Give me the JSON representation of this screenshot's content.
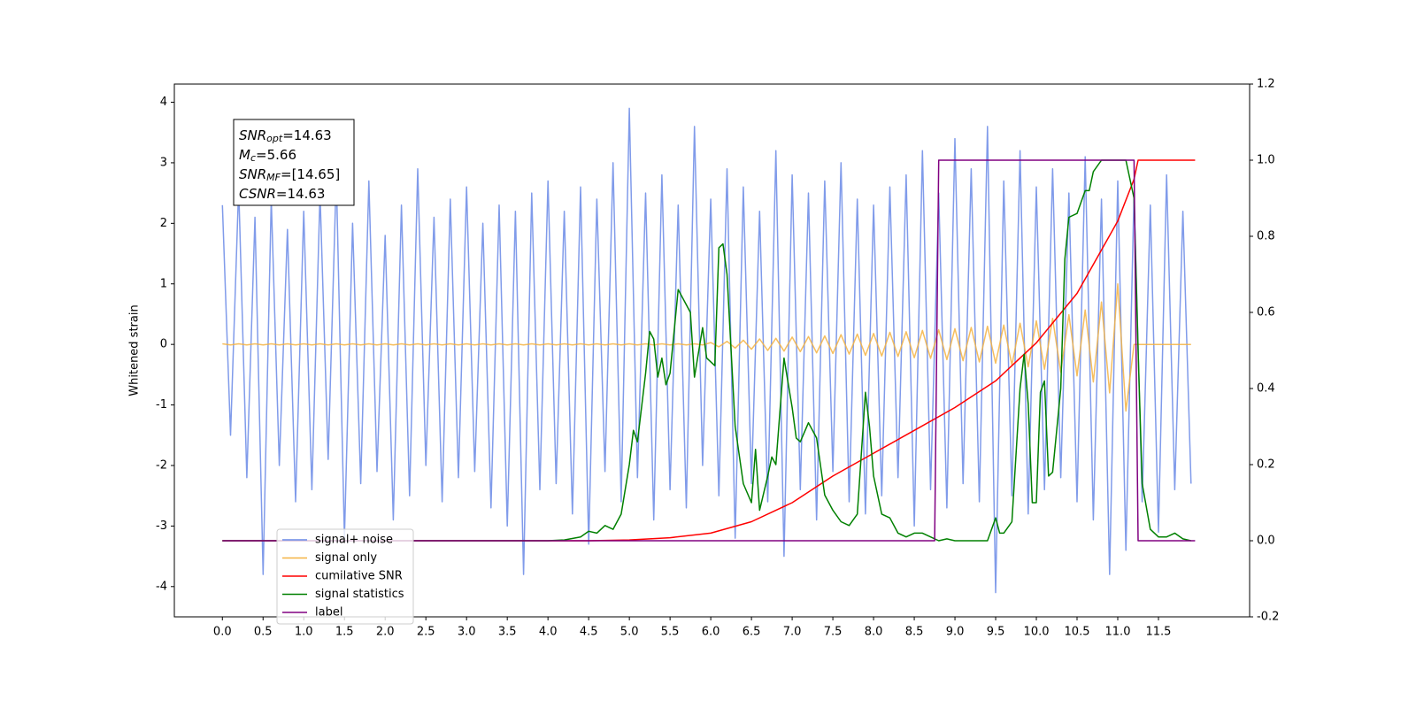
{
  "chart_data": {
    "type": "line",
    "ylabel": "Whitened strain",
    "xlim": [
      -0.59,
      12.62
    ],
    "ylim": [
      -4.5,
      4.3
    ],
    "y2lim": [
      -0.2,
      1.2
    ],
    "xticks": [
      {
        "value": 0,
        "label": "0.0"
      },
      0.5,
      {
        "value": 1,
        "label": "1.0"
      },
      1.5,
      {
        "value": 2,
        "label": "2.0"
      },
      2.5,
      {
        "value": 3,
        "label": "3.0"
      },
      3.5,
      {
        "value": 4,
        "label": "4.0"
      },
      4.5,
      {
        "value": 5,
        "label": "5.0"
      },
      5.5,
      {
        "value": 6,
        "label": "6.0"
      },
      6.5,
      {
        "value": 7,
        "label": "7.0"
      },
      7.5,
      {
        "value": 8,
        "label": "8.0"
      },
      8.5,
      {
        "value": 9,
        "label": "9.0"
      },
      9.5,
      {
        "value": 10,
        "label": "10.0"
      },
      10.5,
      {
        "value": 11,
        "label": "11.0"
      },
      11.5
    ],
    "yticks": [
      -4,
      -3,
      -2,
      -1,
      0,
      1,
      2,
      3,
      4
    ],
    "y2ticks": [
      -0.2,
      {
        "value": 0,
        "label": "0.0"
      },
      0.2,
      0.4,
      0.6,
      0.8,
      {
        "value": 1,
        "label": "1.0"
      },
      1.2
    ],
    "legend": "lower left",
    "annotation": [
      {
        "main": "SNR",
        "sub": "opt",
        "rest": "=14.63"
      },
      {
        "main": "M",
        "sub": "c",
        "rest": "=5.66"
      },
      {
        "main": "SNR",
        "sub": "MF",
        "rest": "=[14.65]"
      },
      {
        "main": "CSNR",
        "rest": "=14.63"
      }
    ],
    "x": [
      0.0,
      0.1,
      0.2,
      0.3,
      0.4,
      0.5,
      0.6,
      0.7,
      0.8,
      0.9,
      1.0,
      1.1,
      1.2,
      1.3,
      1.4,
      1.5,
      1.6,
      1.7,
      1.8,
      1.9,
      2.0,
      2.1,
      2.2,
      2.3,
      2.4,
      2.5,
      2.6,
      2.7,
      2.8,
      2.9,
      3.0,
      3.1,
      3.2,
      3.3,
      3.4,
      3.5,
      3.6,
      3.7,
      3.8,
      3.9,
      4.0,
      4.1,
      4.2,
      4.3,
      4.4,
      4.5,
      4.6,
      4.7,
      4.8,
      4.9,
      5.0,
      5.1,
      5.2,
      5.3,
      5.4,
      5.5,
      5.6,
      5.7,
      5.8,
      5.9,
      6.0,
      6.1,
      6.2,
      6.3,
      6.4,
      6.5,
      6.6,
      6.7,
      6.8,
      6.9,
      7.0,
      7.1,
      7.2,
      7.3,
      7.4,
      7.5,
      7.6,
      7.7,
      7.8,
      7.9,
      8.0,
      8.1,
      8.2,
      8.3,
      8.4,
      8.5,
      8.6,
      8.7,
      8.8,
      8.9,
      9.0,
      9.1,
      9.2,
      9.3,
      9.4,
      9.5,
      9.6,
      9.7,
      9.8,
      9.9,
      10.0,
      10.1,
      10.2,
      10.3,
      10.4,
      10.5,
      10.6,
      10.7,
      10.8,
      10.9,
      11.0,
      11.1,
      11.2,
      11.3,
      11.4,
      11.5,
      11.6,
      11.7,
      11.8,
      11.9
    ],
    "series": [
      {
        "name": "signal+ noise",
        "color": "#6a8ae6",
        "values": [
          2.3,
          -1.5,
          2.6,
          -2.2,
          2.1,
          -3.8,
          2.4,
          -2.0,
          1.9,
          -2.6,
          2.2,
          -2.4,
          2.5,
          -1.9,
          2.8,
          -3.2,
          2.0,
          -2.3,
          2.7,
          -2.1,
          1.8,
          -2.9,
          2.3,
          -2.5,
          2.9,
          -2.0,
          2.1,
          -2.6,
          2.4,
          -2.2,
          2.6,
          -2.1,
          2.0,
          -2.7,
          2.3,
          -3.0,
          2.2,
          -3.8,
          2.5,
          -2.4,
          2.7,
          -2.3,
          2.2,
          -2.8,
          2.6,
          -3.3,
          2.4,
          -2.1,
          3.0,
          -2.6,
          3.9,
          -2.2,
          2.5,
          -2.9,
          2.8,
          -2.4,
          2.3,
          -2.7,
          3.6,
          -2.0,
          2.4,
          -2.5,
          2.9,
          -3.2,
          2.6,
          -2.3,
          2.2,
          -2.6,
          3.2,
          -3.5,
          2.8,
          -2.4,
          2.5,
          -2.9,
          2.7,
          -2.1,
          3.0,
          -2.6,
          2.4,
          -2.8,
          2.3,
          -2.5,
          2.6,
          -2.2,
          2.8,
          -3.0,
          3.2,
          -2.4,
          2.5,
          -2.7,
          3.4,
          -2.3,
          2.9,
          -2.6,
          3.6,
          -4.1,
          2.7,
          -2.5,
          3.2,
          -2.8,
          2.6,
          -2.4,
          2.9,
          -2.2,
          2.5,
          -2.6,
          3.1,
          -2.9,
          2.4,
          -3.8,
          2.7,
          -3.4,
          2.5,
          -2.6,
          2.3,
          -3.1,
          2.8,
          -2.4,
          2.2,
          -2.3
        ]
      },
      {
        "name": "signal only",
        "color": "#f5b342",
        "values": [
          0.01,
          -0.01,
          0.01,
          -0.01,
          0.01,
          -0.01,
          0.01,
          -0.01,
          0.01,
          -0.01,
          0.01,
          -0.01,
          0.01,
          -0.01,
          0.01,
          -0.01,
          0.01,
          -0.01,
          0.01,
          -0.01,
          0.01,
          -0.01,
          0.01,
          -0.01,
          0.01,
          -0.01,
          0.01,
          -0.01,
          0.01,
          -0.01,
          0.01,
          -0.01,
          0.01,
          -0.01,
          0.01,
          -0.01,
          0.01,
          -0.01,
          0.01,
          -0.01,
          0.01,
          -0.01,
          0.01,
          -0.01,
          0.01,
          -0.01,
          0.01,
          -0.01,
          0.01,
          -0.01,
          0.01,
          -0.01,
          0.01,
          -0.01,
          0.01,
          -0.01,
          0.01,
          -0.01,
          0.01,
          -0.01,
          0.03,
          -0.04,
          0.05,
          -0.06,
          0.07,
          -0.08,
          0.09,
          -0.1,
          0.1,
          -0.11,
          0.12,
          -0.12,
          0.13,
          -0.14,
          0.14,
          -0.15,
          0.16,
          -0.16,
          0.17,
          -0.18,
          0.18,
          -0.19,
          0.2,
          -0.2,
          0.21,
          -0.22,
          0.23,
          -0.23,
          0.24,
          -0.25,
          0.26,
          -0.27,
          0.28,
          -0.29,
          0.3,
          -0.31,
          0.32,
          -0.34,
          0.35,
          -0.37,
          0.39,
          -0.41,
          0.43,
          -0.46,
          0.49,
          -0.52,
          0.57,
          -0.62,
          0.7,
          -0.8,
          1.0,
          -1.1,
          0,
          0,
          0,
          0,
          0,
          0,
          0,
          0
        ]
      },
      {
        "name": "cumilative SNR",
        "color": "#ff0000",
        "axis": "y2",
        "x": [
          0,
          4.5,
          5.0,
          5.5,
          6.0,
          6.5,
          7.0,
          7.5,
          8.0,
          8.5,
          9.0,
          9.5,
          10.0,
          10.5,
          11.0,
          11.2,
          11.25,
          11.95
        ],
        "values": [
          0,
          0,
          0.002,
          0.008,
          0.02,
          0.05,
          0.1,
          0.17,
          0.23,
          0.29,
          0.35,
          0.42,
          0.52,
          0.65,
          0.84,
          0.95,
          1.0,
          1.0
        ]
      },
      {
        "name": "signal statistics",
        "color": "#008000",
        "axis": "y2",
        "x": [
          0,
          4.0,
          4.2,
          4.4,
          4.5,
          4.6,
          4.7,
          4.8,
          4.9,
          5.0,
          5.05,
          5.1,
          5.2,
          5.25,
          5.3,
          5.35,
          5.4,
          5.45,
          5.5,
          5.6,
          5.7,
          5.75,
          5.8,
          5.9,
          5.95,
          6.05,
          6.1,
          6.15,
          6.2,
          6.3,
          6.4,
          6.5,
          6.55,
          6.6,
          6.7,
          6.75,
          6.8,
          6.9,
          7.0,
          7.05,
          7.1,
          7.2,
          7.3,
          7.4,
          7.5,
          7.6,
          7.7,
          7.8,
          7.9,
          7.95,
          8.0,
          8.1,
          8.2,
          8.3,
          8.4,
          8.5,
          8.6,
          8.7,
          8.8,
          8.9,
          9.0,
          9.4,
          9.5,
          9.55,
          9.6,
          9.7,
          9.8,
          9.85,
          9.9,
          9.95,
          10.0,
          10.05,
          10.1,
          10.15,
          10.2,
          10.3,
          10.35,
          10.4,
          10.5,
          10.6,
          10.65,
          10.7,
          10.8,
          11.0,
          11.1,
          11.2,
          11.25,
          11.3,
          11.4,
          11.5,
          11.6,
          11.7,
          11.8,
          11.9
        ],
        "values": [
          0,
          0,
          0.002,
          0.01,
          0.025,
          0.02,
          0.04,
          0.03,
          0.07,
          0.2,
          0.29,
          0.26,
          0.44,
          0.55,
          0.53,
          0.43,
          0.48,
          0.41,
          0.44,
          0.66,
          0.62,
          0.6,
          0.43,
          0.56,
          0.48,
          0.46,
          0.77,
          0.78,
          0.7,
          0.3,
          0.15,
          0.1,
          0.24,
          0.08,
          0.17,
          0.22,
          0.2,
          0.48,
          0.35,
          0.27,
          0.26,
          0.31,
          0.27,
          0.12,
          0.08,
          0.05,
          0.04,
          0.07,
          0.39,
          0.3,
          0.17,
          0.07,
          0.06,
          0.02,
          0.01,
          0.02,
          0.02,
          0.01,
          0.0,
          0.005,
          0.0,
          0.0,
          0.06,
          0.02,
          0.02,
          0.05,
          0.4,
          0.49,
          0.36,
          0.1,
          0.1,
          0.39,
          0.42,
          0.17,
          0.18,
          0.4,
          0.74,
          0.85,
          0.86,
          0.92,
          0.92,
          0.97,
          1.0,
          1.0,
          1.0,
          0.9,
          0.5,
          0.15,
          0.03,
          0.01,
          0.01,
          0.02,
          0.005,
          0.0
        ]
      },
      {
        "name": "label",
        "color": "#800080",
        "axis": "y2",
        "x": [
          0,
          8.75,
          8.8,
          11.2,
          11.25,
          11.95
        ],
        "values": [
          0,
          0,
          1,
          1,
          0,
          0
        ]
      }
    ]
  }
}
